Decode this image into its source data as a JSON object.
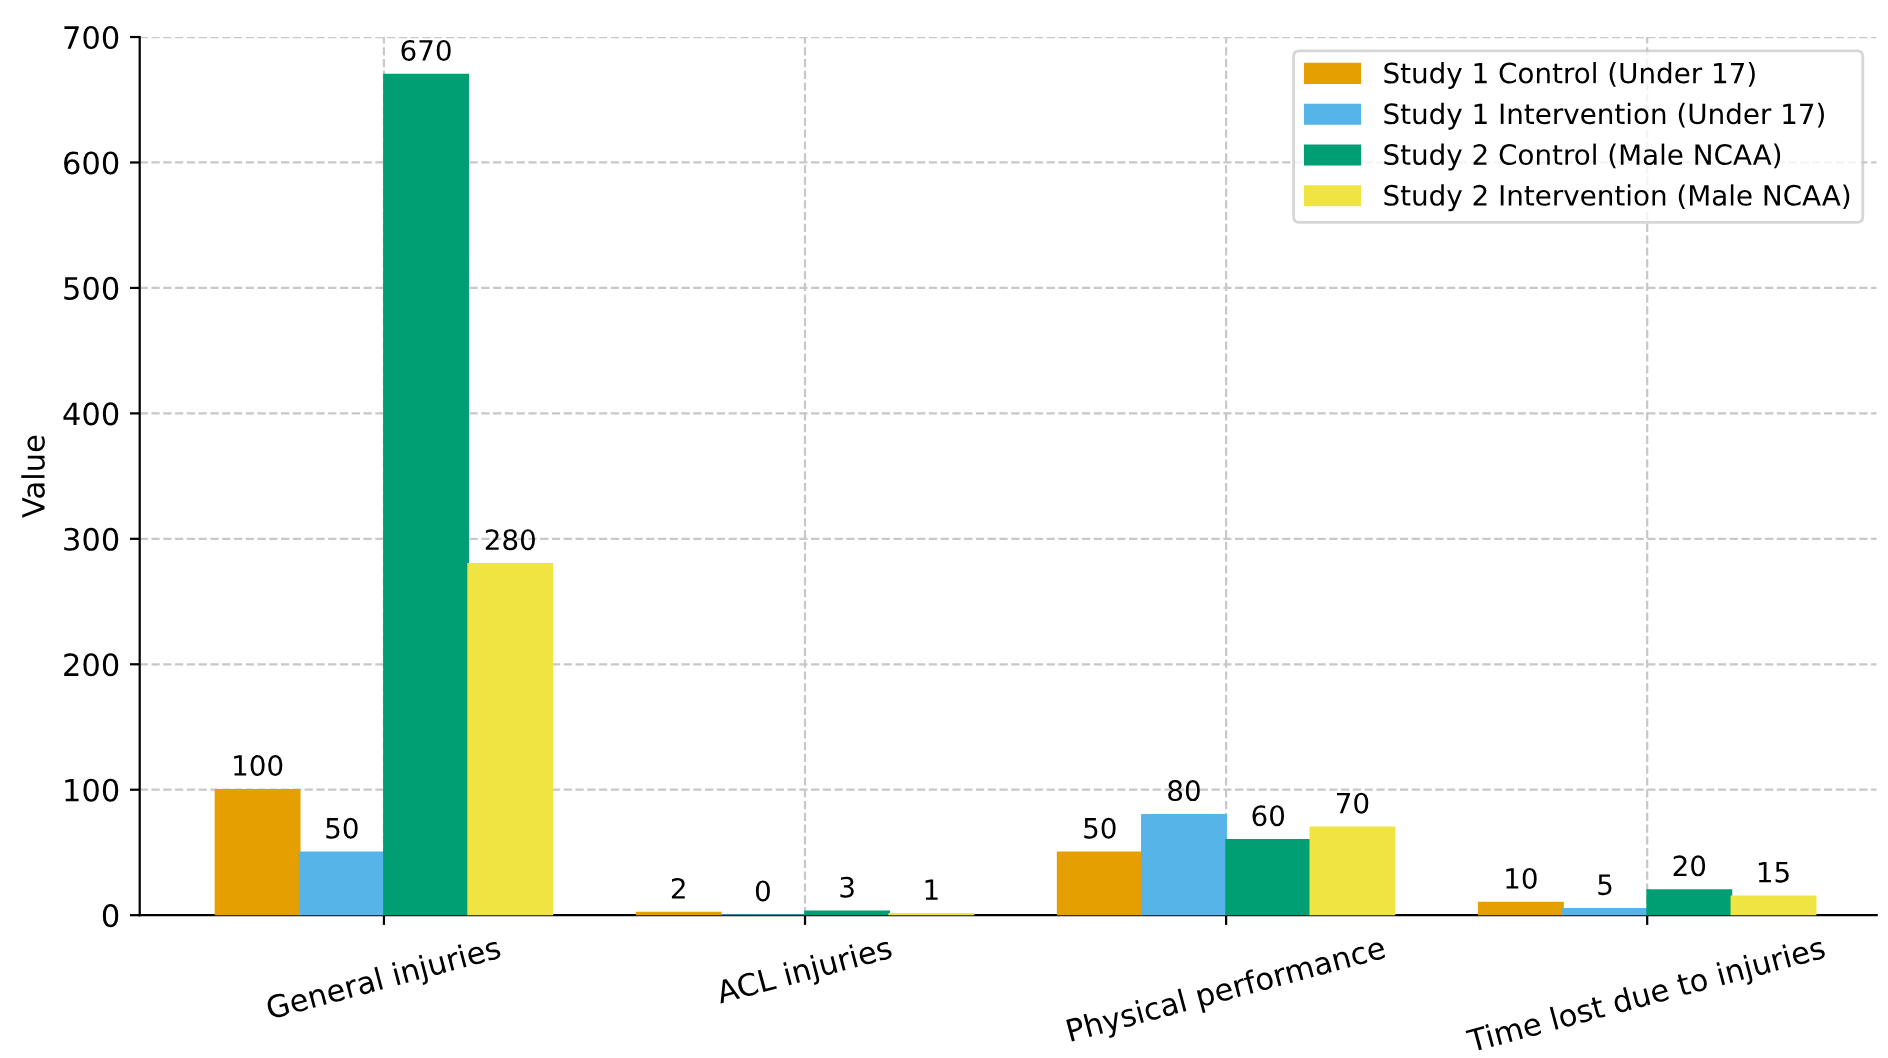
{
  "chart_data": {
    "type": "bar",
    "ylabel": "Value",
    "categories": [
      "General injuries",
      "ACL injuries",
      "Physical performance",
      "Time lost due to injuries"
    ],
    "series": [
      {
        "name": "Study 1 Control (Under 17)",
        "color": "#e69f00",
        "values": [
          100,
          2,
          50,
          10
        ]
      },
      {
        "name": "Study 1 Intervention (Under 17)",
        "color": "#56b4e9",
        "values": [
          50,
          0,
          80,
          5
        ]
      },
      {
        "name": "Study 2 Control (Male NCAA)",
        "color": "#009e73",
        "values": [
          670,
          3,
          60,
          20
        ]
      },
      {
        "name": "Study 2 Intervention (Male NCAA)",
        "color": "#f0e442",
        "values": [
          280,
          1,
          70,
          15
        ]
      }
    ],
    "ylim": [
      0,
      700
    ],
    "yticks": [
      0,
      100,
      200,
      300,
      400,
      500,
      600,
      700
    ],
    "grid": true,
    "legend": "top right",
    "data_labels": true
  }
}
